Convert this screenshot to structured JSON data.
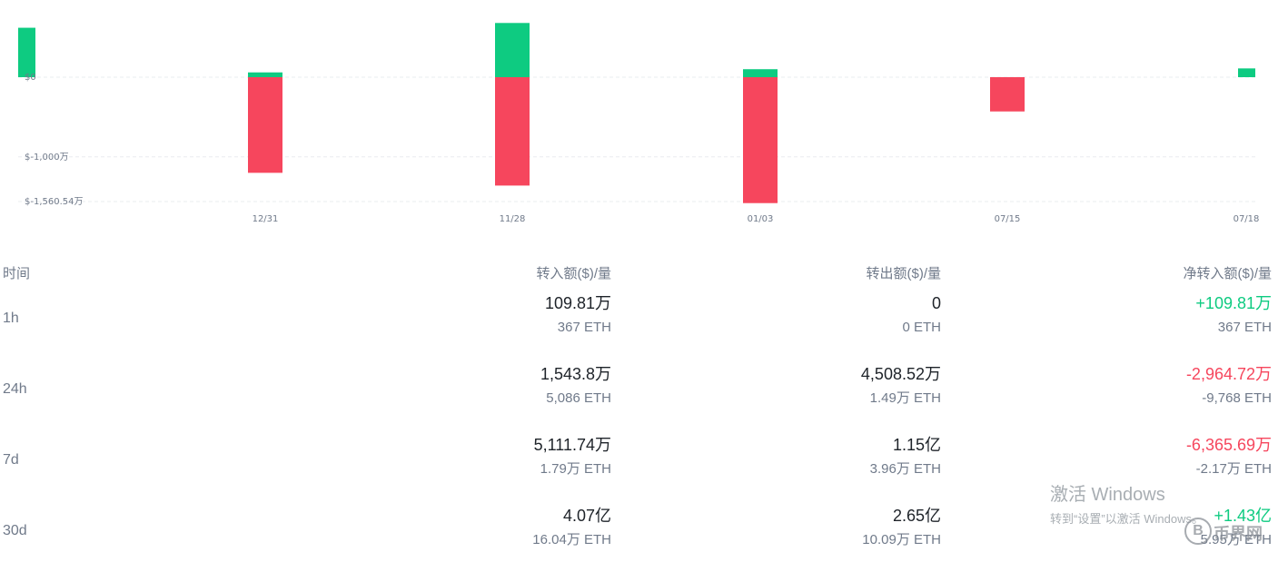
{
  "chart_data": {
    "type": "bar",
    "categories": [
      "",
      "12/31",
      "11/28",
      "01/03",
      "07/15",
      "07/18"
    ],
    "series": [
      {
        "values": [
          620,
          60,
          680,
          100,
          0,
          110
        ]
      },
      {
        "values": [
          0,
          -1200,
          -1360,
          -1580,
          -430,
          0
        ]
      }
    ],
    "y_ticks": [
      {
        "value": 0,
        "label": "$0"
      },
      {
        "value": -1000,
        "label": "$-1,000万"
      },
      {
        "value": -1560.54,
        "label": "$-1,560.54万"
      }
    ],
    "grid": true,
    "colors": {
      "inflow": "#0ecb81",
      "outflow": "#f6465d",
      "grid": "#eaecef"
    }
  },
  "table": {
    "headers": {
      "time": "时间",
      "inflow": "转入额($)/量",
      "outflow": "转出额($)/量",
      "net": "净转入额($)/量"
    },
    "rows": [
      {
        "period": "1h",
        "in_usd": "109.81万",
        "in_eth": "367 ETH",
        "out_usd": "0",
        "out_eth": "0 ETH",
        "net_usd": "+109.81万",
        "net_eth": "367 ETH",
        "net_sign": "pos"
      },
      {
        "period": "24h",
        "in_usd": "1,543.8万",
        "in_eth": "5,086 ETH",
        "out_usd": "4,508.52万",
        "out_eth": "1.49万 ETH",
        "net_usd": "-2,964.72万",
        "net_eth": "-9,768 ETH",
        "net_sign": "neg"
      },
      {
        "period": "7d",
        "in_usd": "5,111.74万",
        "in_eth": "1.79万 ETH",
        "out_usd": "1.15亿",
        "out_eth": "3.96万 ETH",
        "net_usd": "-6,365.69万",
        "net_eth": "-2.17万 ETH",
        "net_sign": "neg"
      },
      {
        "period": "30d",
        "in_usd": "4.07亿",
        "in_eth": "16.04万 ETH",
        "out_usd": "2.65亿",
        "out_eth": "10.09万 ETH",
        "net_usd": "+1.43亿",
        "net_eth": "5.95万 ETH",
        "net_sign": "pos"
      }
    ]
  },
  "watermark": {
    "line1": "激活 Windows",
    "line2": "转到“设置”以激活 Windows。"
  },
  "logo": {
    "symbol": "B",
    "text": "币界网"
  }
}
